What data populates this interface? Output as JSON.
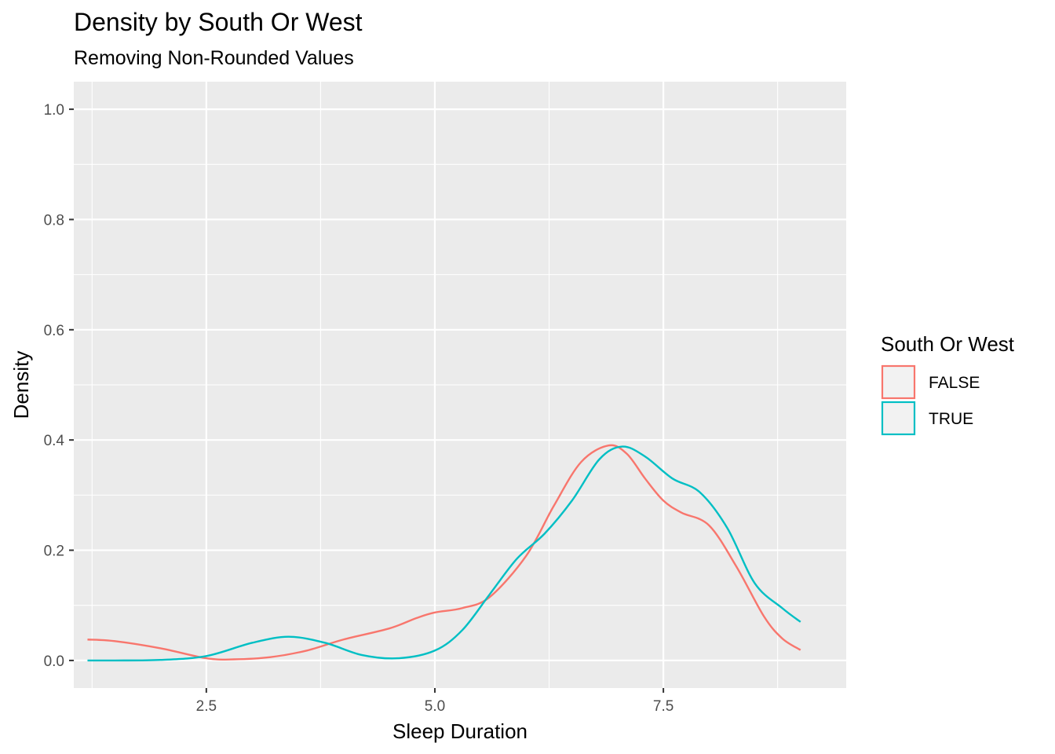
{
  "chart_data": {
    "type": "line",
    "title": "Density by South Or West",
    "subtitle": "Removing Non-Rounded Values",
    "xlabel": "Sleep Duration",
    "ylabel": "Density",
    "xlim": [
      1.05,
      9.5
    ],
    "ylim": [
      -0.05,
      1.05
    ],
    "x_ticks": [
      2.5,
      5.0,
      7.5
    ],
    "x_tick_labels": [
      "2.5",
      "5.0",
      "7.5"
    ],
    "y_ticks": [
      0.0,
      0.2,
      0.4,
      0.6,
      0.8,
      1.0
    ],
    "y_tick_labels": [
      "0.0",
      "0.2",
      "0.4",
      "0.6",
      "0.8",
      "1.0"
    ],
    "grid": true,
    "legend_title": "South Or West",
    "legend_position": "right",
    "series": [
      {
        "name": "FALSE",
        "color": "#F8766D",
        "x": [
          1.2,
          1.5,
          2.0,
          2.5,
          2.8,
          3.2,
          3.6,
          4.0,
          4.5,
          4.8,
          5.0,
          5.3,
          5.6,
          6.0,
          6.3,
          6.6,
          6.9,
          7.1,
          7.3,
          7.5,
          7.7,
          8.0,
          8.3,
          8.6,
          8.8,
          9.0
        ],
        "y": [
          0.038,
          0.035,
          0.022,
          0.004,
          0.002,
          0.006,
          0.018,
          0.038,
          0.058,
          0.077,
          0.087,
          0.095,
          0.115,
          0.19,
          0.28,
          0.36,
          0.39,
          0.375,
          0.33,
          0.29,
          0.268,
          0.245,
          0.17,
          0.08,
          0.04,
          0.019
        ]
      },
      {
        "name": "TRUE",
        "color": "#00BFC4",
        "x": [
          1.2,
          1.5,
          2.0,
          2.5,
          3.0,
          3.4,
          3.8,
          4.2,
          4.6,
          5.0,
          5.3,
          5.6,
          5.9,
          6.2,
          6.5,
          6.8,
          7.05,
          7.3,
          7.6,
          7.9,
          8.2,
          8.5,
          8.8,
          9.0
        ],
        "y": [
          0.0,
          0.0,
          0.001,
          0.008,
          0.032,
          0.043,
          0.032,
          0.01,
          0.004,
          0.018,
          0.055,
          0.12,
          0.185,
          0.23,
          0.29,
          0.365,
          0.388,
          0.37,
          0.33,
          0.305,
          0.24,
          0.14,
          0.095,
          0.07
        ]
      }
    ]
  }
}
